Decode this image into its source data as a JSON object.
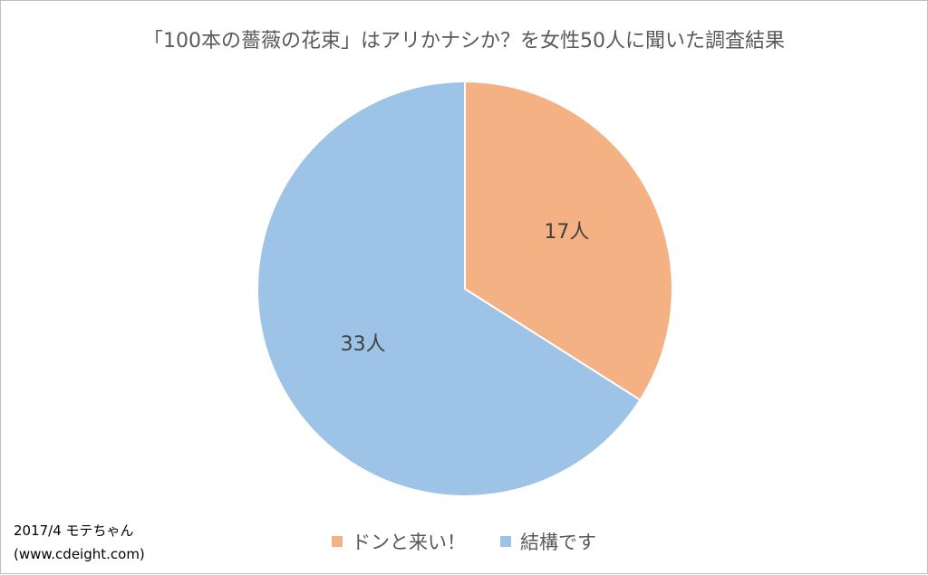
{
  "chart_data": {
    "type": "pie",
    "title": "「100本の薔薇の花束」はアリかナシか？を女性50人に聞いた調査結果",
    "categories": [
      "ドンと来い！",
      "結構です"
    ],
    "values": [
      17,
      33
    ],
    "data_labels": [
      "17人",
      "33人"
    ],
    "colors": [
      "#f4b183",
      "#9dc3e6"
    ],
    "slice_border_color": "#ffffff",
    "start_angle": "12 o'clock",
    "direction": "clockwise",
    "legend_position": "bottom"
  },
  "credit": {
    "line1": "2017/4 モテちゃん",
    "line2": "(www.cdeight.com)"
  }
}
